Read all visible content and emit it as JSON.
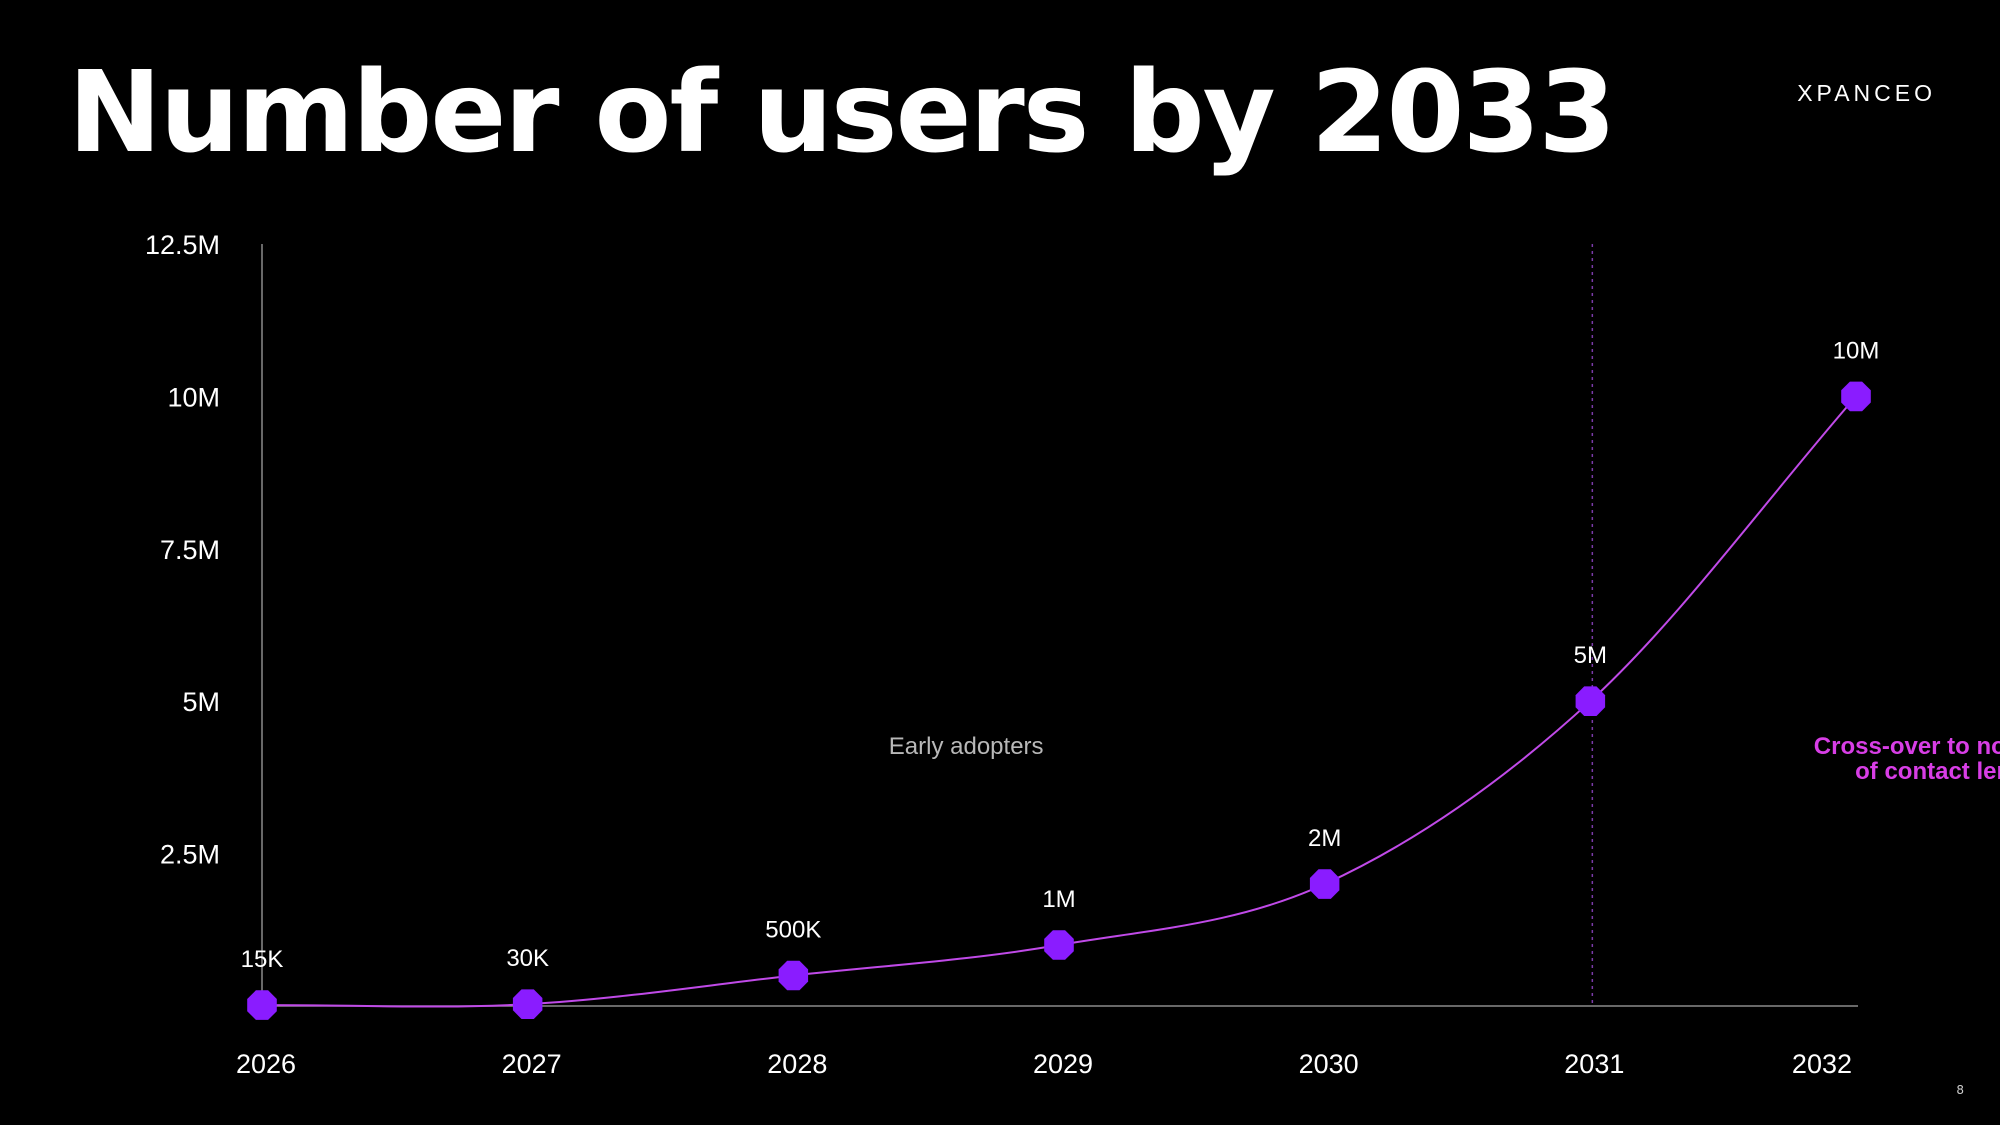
{
  "slide": {
    "title": "Number of users by 2033",
    "logo": "XPANCEO",
    "page_number": "8"
  },
  "colors": {
    "point": "#8a1cff",
    "line": "#c04ae8",
    "axis": "#8a8a8a",
    "annotation_pink": "#d83ee6",
    "annotation_gray": "#b8b8b8"
  },
  "chart_data": {
    "type": "line",
    "categories": [
      "2026",
      "2027",
      "2028",
      "2029",
      "2030",
      "2031",
      "2032"
    ],
    "series": [
      {
        "values": [
          15000,
          30000,
          500000,
          1000000,
          2000000,
          5000000,
          10000000
        ],
        "labels": [
          "15K",
          "30K",
          "500K",
          "1M",
          "2M",
          "5M",
          "10M"
        ]
      }
    ],
    "ylim": [
      0,
      12500000
    ],
    "yticks": [
      2500000,
      5000000,
      7500000,
      10000000,
      12500000
    ],
    "ytick_labels": [
      "2.5M",
      "5M",
      "7.5M",
      "10M",
      "12.5M"
    ],
    "xlabel": "",
    "ylabel": "",
    "grid": false,
    "reference_line_at": "2031",
    "annotations": [
      {
        "lines": [
          "Early adopters"
        ],
        "style": "gray"
      },
      {
        "lines": [
          "Cross-over to non-users",
          "of contact lenses"
        ],
        "style": "pink"
      }
    ]
  }
}
